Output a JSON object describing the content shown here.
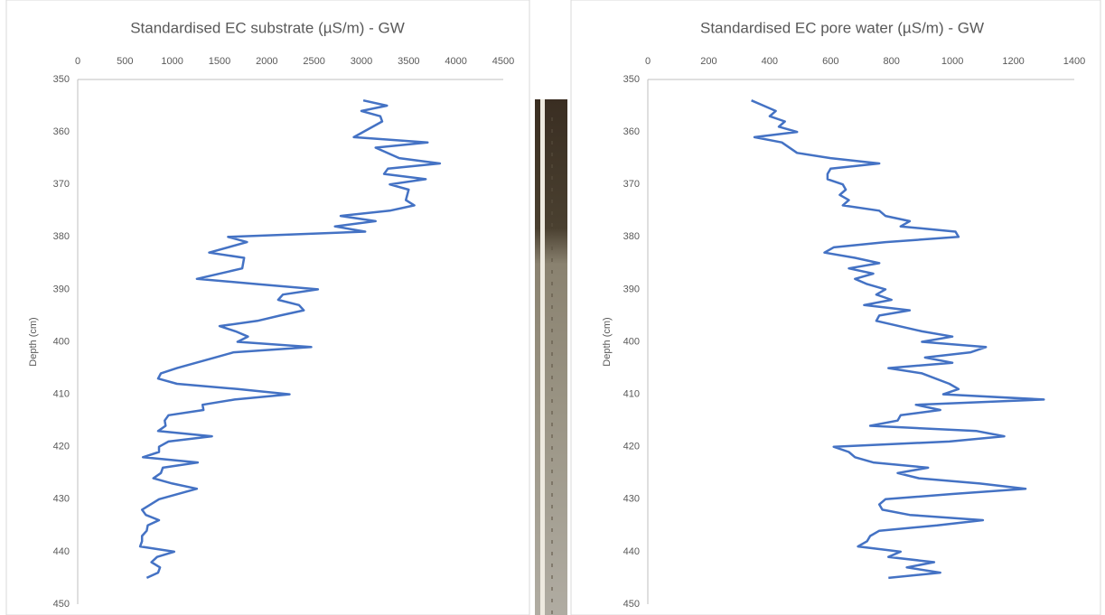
{
  "chart_data": [
    {
      "type": "line",
      "title": "Standardised EC substrate (µS/m) - GW",
      "y_label": "Depth (cm)",
      "y": [
        354,
        355,
        356,
        357,
        358,
        361,
        362,
        363,
        365,
        366,
        367,
        368,
        369,
        370,
        371,
        373,
        374,
        375,
        376,
        377,
        378,
        379,
        380,
        381,
        383,
        384,
        386,
        388,
        389,
        390,
        391,
        392,
        393,
        394,
        395,
        396,
        397,
        398,
        399,
        400,
        401,
        402,
        403,
        405,
        406,
        407,
        408,
        409,
        410,
        411,
        412,
        413,
        414,
        415,
        416,
        417,
        418,
        419,
        420,
        421,
        422,
        423,
        424,
        425,
        426,
        427,
        428,
        430,
        432,
        433,
        434,
        435,
        436,
        437,
        438,
        439,
        440,
        441,
        442,
        443,
        444,
        445
      ],
      "values": [
        3020,
        3270,
        3000,
        3200,
        3220,
        2920,
        3700,
        3150,
        3400,
        3830,
        3280,
        3240,
        3680,
        3300,
        3500,
        3470,
        3560,
        3300,
        2780,
        3150,
        2720,
        3040,
        1590,
        1790,
        1390,
        1760,
        1740,
        1260,
        1900,
        2540,
        2170,
        2120,
        2340,
        2390,
        2140,
        1900,
        1500,
        1670,
        1800,
        1690,
        2470,
        1650,
        1450,
        1050,
        880,
        850,
        1050,
        1690,
        2240,
        1660,
        1320,
        1330,
        960,
        920,
        930,
        850,
        1420,
        960,
        860,
        860,
        690,
        1270,
        900,
        880,
        800,
        1000,
        1260,
        860,
        680,
        720,
        860,
        740,
        730,
        680,
        680,
        660,
        1020,
        840,
        780,
        870,
        850,
        730
      ],
      "color": "#4472c4",
      "xlim": [
        0,
        4500
      ],
      "xticks": [
        0,
        500,
        1000,
        1500,
        2000,
        2500,
        3000,
        3500,
        4000,
        4500
      ],
      "ylim": [
        350,
        450
      ],
      "yticks": [
        350,
        360,
        370,
        380,
        390,
        400,
        410,
        420,
        430,
        440,
        450
      ],
      "y_inverted": true,
      "grid": false
    },
    {
      "type": "line",
      "title": "Standardised EC pore water (µS/m) - GW",
      "y_label": "Depth (cm)",
      "y": [
        354,
        355,
        356,
        357,
        358,
        359,
        360,
        361,
        362,
        364,
        365,
        366,
        367,
        368,
        369,
        370,
        371,
        372,
        373,
        374,
        375,
        376,
        377,
        378,
        379,
        380,
        381,
        382,
        383,
        384,
        385,
        386,
        387,
        388,
        389,
        390,
        391,
        392,
        393,
        394,
        395,
        396,
        398,
        399,
        400,
        401,
        402,
        403,
        404,
        405,
        406,
        408,
        409,
        410,
        411,
        412,
        413,
        414,
        415,
        416,
        417,
        418,
        419,
        420,
        421,
        422,
        423,
        424,
        425,
        426,
        427,
        428,
        429,
        430,
        431,
        432,
        433,
        434,
        435,
        436,
        437,
        438,
        439,
        440,
        441,
        442,
        443,
        444,
        445
      ],
      "values": [
        340,
        380,
        420,
        400,
        450,
        430,
        490,
        350,
        440,
        490,
        600,
        760,
        600,
        590,
        590,
        640,
        650,
        630,
        660,
        640,
        760,
        780,
        860,
        830,
        1010,
        1020,
        780,
        610,
        580,
        680,
        760,
        660,
        740,
        680,
        720,
        780,
        750,
        800,
        710,
        860,
        760,
        750,
        900,
        1000,
        900,
        1110,
        1060,
        910,
        1000,
        790,
        900,
        990,
        1020,
        970,
        1300,
        880,
        960,
        830,
        820,
        730,
        1080,
        1170,
        990,
        610,
        660,
        680,
        740,
        920,
        820,
        890,
        1090,
        1240,
        1000,
        780,
        760,
        770,
        860,
        1100,
        950,
        760,
        730,
        720,
        690,
        830,
        790,
        940,
        850,
        960,
        790
      ],
      "color": "#4472c4",
      "xlim": [
        0,
        1400
      ],
      "xticks": [
        0,
        200,
        400,
        600,
        800,
        1000,
        1200,
        1400
      ],
      "ylim": [
        350,
        450
      ],
      "yticks": [
        350,
        360,
        370,
        380,
        390,
        400,
        410,
        420,
        430,
        440,
        450
      ],
      "y_inverted": true,
      "grid": false
    }
  ]
}
